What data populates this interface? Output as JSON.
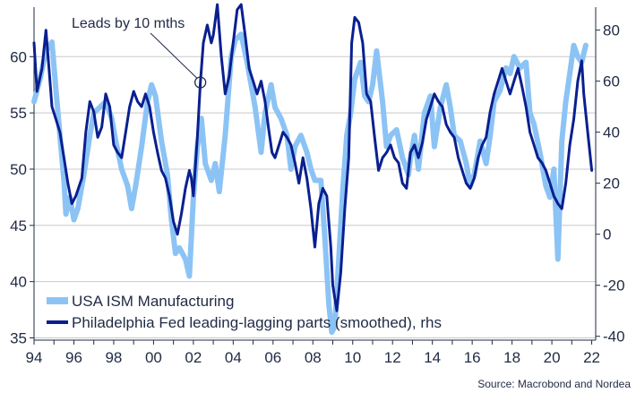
{
  "chart_data": {
    "type": "line",
    "x_unit": "year",
    "x_tick_labels": [
      "94",
      "96",
      "98",
      "00",
      "02",
      "04",
      "06",
      "08",
      "10",
      "12",
      "14",
      "16",
      "18",
      "20",
      "22"
    ],
    "x_tick_values": [
      1994,
      1996,
      1998,
      2000,
      2002,
      2004,
      2006,
      2008,
      2010,
      2012,
      2014,
      2016,
      2018,
      2020,
      2022
    ],
    "xlim": [
      1994,
      2022.2
    ],
    "left_axis": {
      "ticks": [
        35,
        40,
        45,
        50,
        55,
        60
      ],
      "ylim": [
        34.8,
        64.4
      ]
    },
    "right_axis": {
      "ticks": [
        -40,
        -20,
        0,
        20,
        40,
        60,
        80
      ],
      "ylim": [
        -41.5,
        89
      ]
    },
    "grid": "horizontal",
    "legend_position": "bottom-left",
    "annotation": {
      "text": "Leads by 10 mths",
      "x": 2002.35,
      "y_rhs": 59.5
    },
    "source": "Source: Macrobond and Nordea",
    "series": [
      {
        "name": "USA ISM Manufacturing",
        "axis": "left",
        "color": "#8cc3f5",
        "points": [
          [
            1994.0,
            56
          ],
          [
            1994.3,
            58
          ],
          [
            1994.6,
            60.5
          ],
          [
            1994.9,
            61.3
          ],
          [
            1995.1,
            57
          ],
          [
            1995.3,
            53
          ],
          [
            1995.5,
            49
          ],
          [
            1995.6,
            46
          ],
          [
            1995.8,
            47.5
          ],
          [
            1996.0,
            45.5
          ],
          [
            1996.2,
            46.5
          ],
          [
            1996.5,
            49.5
          ],
          [
            1996.8,
            53
          ],
          [
            1997.0,
            55
          ],
          [
            1997.3,
            55.5
          ],
          [
            1997.6,
            56
          ],
          [
            1997.9,
            54.5
          ],
          [
            1998.1,
            52.5
          ],
          [
            1998.4,
            50
          ],
          [
            1998.7,
            48.5
          ],
          [
            1998.9,
            46.5
          ],
          [
            1999.1,
            48.5
          ],
          [
            1999.4,
            52
          ],
          [
            1999.7,
            56
          ],
          [
            1999.9,
            57.5
          ],
          [
            2000.1,
            56.5
          ],
          [
            2000.4,
            52.5
          ],
          [
            2000.7,
            49.5
          ],
          [
            2000.9,
            45.5
          ],
          [
            2001.1,
            42.5
          ],
          [
            2001.3,
            43
          ],
          [
            2001.6,
            42
          ],
          [
            2001.8,
            40.5
          ],
          [
            2002.0,
            47.5
          ],
          [
            2002.2,
            52
          ],
          [
            2002.4,
            54.5
          ],
          [
            2002.6,
            50.5
          ],
          [
            2002.9,
            49
          ],
          [
            2003.1,
            50.5
          ],
          [
            2003.3,
            48
          ],
          [
            2003.6,
            53
          ],
          [
            2003.9,
            60
          ],
          [
            2004.1,
            61.5
          ],
          [
            2004.4,
            62
          ],
          [
            2004.7,
            59.5
          ],
          [
            2004.9,
            57.5
          ],
          [
            2005.1,
            55.5
          ],
          [
            2005.4,
            51.5
          ],
          [
            2005.6,
            55
          ],
          [
            2005.9,
            57.5
          ],
          [
            2006.1,
            55.5
          ],
          [
            2006.4,
            54.5
          ],
          [
            2006.7,
            53
          ],
          [
            2006.9,
            50
          ],
          [
            2007.1,
            52
          ],
          [
            2007.4,
            53
          ],
          [
            2007.7,
            51.5
          ],
          [
            2007.9,
            50
          ],
          [
            2008.1,
            49
          ],
          [
            2008.4,
            49
          ],
          [
            2008.6,
            44
          ],
          [
            2008.8,
            38
          ],
          [
            2008.95,
            35.5
          ],
          [
            2009.1,
            36
          ],
          [
            2009.3,
            42
          ],
          [
            2009.5,
            48
          ],
          [
            2009.7,
            53
          ],
          [
            2009.9,
            55
          ],
          [
            2010.1,
            58
          ],
          [
            2010.4,
            59.5
          ],
          [
            2010.6,
            56.5
          ],
          [
            2010.8,
            56
          ],
          [
            2011.0,
            57.5
          ],
          [
            2011.2,
            60.5
          ],
          [
            2011.5,
            56
          ],
          [
            2011.7,
            52
          ],
          [
            2011.9,
            53
          ],
          [
            2012.2,
            53.5
          ],
          [
            2012.5,
            51
          ],
          [
            2012.8,
            49.5
          ],
          [
            2012.9,
            51
          ],
          [
            2013.1,
            53
          ],
          [
            2013.3,
            50
          ],
          [
            2013.6,
            55
          ],
          [
            2013.9,
            56.5
          ],
          [
            2014.1,
            52
          ],
          [
            2014.4,
            55.5
          ],
          [
            2014.7,
            57.5
          ],
          [
            2014.9,
            55.5
          ],
          [
            2015.1,
            53
          ],
          [
            2015.4,
            52.5
          ],
          [
            2015.7,
            50.5
          ],
          [
            2015.9,
            48.5
          ],
          [
            2016.1,
            49.5
          ],
          [
            2016.4,
            52.5
          ],
          [
            2016.7,
            50.5
          ],
          [
            2016.9,
            53
          ],
          [
            2017.1,
            56
          ],
          [
            2017.4,
            57
          ],
          [
            2017.7,
            59
          ],
          [
            2017.9,
            58.5
          ],
          [
            2018.1,
            60
          ],
          [
            2018.4,
            59
          ],
          [
            2018.7,
            59.5
          ],
          [
            2018.9,
            55
          ],
          [
            2019.1,
            54
          ],
          [
            2019.4,
            51.5
          ],
          [
            2019.7,
            48.5
          ],
          [
            2019.9,
            47.5
          ],
          [
            2020.1,
            50
          ],
          [
            2020.3,
            42
          ],
          [
            2020.5,
            52.5
          ],
          [
            2020.7,
            56
          ],
          [
            2020.9,
            58.5
          ],
          [
            2021.1,
            61
          ],
          [
            2021.3,
            60
          ],
          [
            2021.5,
            59.5
          ],
          [
            2021.7,
            61
          ]
        ]
      },
      {
        "name": "Philadelphia Fed leading-lagging parts (smoothed), rhs",
        "axis": "right",
        "color": "#0a1f8f",
        "points": [
          [
            1994.0,
            75
          ],
          [
            1994.15,
            56
          ],
          [
            1994.4,
            65
          ],
          [
            1994.6,
            80
          ],
          [
            1994.75,
            65
          ],
          [
            1994.9,
            50
          ],
          [
            1995.1,
            45
          ],
          [
            1995.3,
            40
          ],
          [
            1995.5,
            30
          ],
          [
            1995.7,
            20
          ],
          [
            1995.9,
            12
          ],
          [
            1996.1,
            15
          ],
          [
            1996.4,
            22
          ],
          [
            1996.6,
            40
          ],
          [
            1996.8,
            52
          ],
          [
            1997.0,
            48
          ],
          [
            1997.2,
            38
          ],
          [
            1997.4,
            42
          ],
          [
            1997.6,
            55
          ],
          [
            1997.8,
            50
          ],
          [
            1998.0,
            35
          ],
          [
            1998.2,
            32
          ],
          [
            1998.4,
            30
          ],
          [
            1998.6,
            40
          ],
          [
            1998.8,
            50
          ],
          [
            1999.0,
            56
          ],
          [
            1999.2,
            52
          ],
          [
            1999.4,
            50
          ],
          [
            1999.6,
            55
          ],
          [
            1999.8,
            50
          ],
          [
            2000.0,
            40
          ],
          [
            2000.2,
            32
          ],
          [
            2000.4,
            25
          ],
          [
            2000.6,
            22
          ],
          [
            2000.8,
            15
          ],
          [
            2001.0,
            5
          ],
          [
            2001.2,
            0
          ],
          [
            2001.4,
            8
          ],
          [
            2001.6,
            18
          ],
          [
            2001.8,
            25
          ],
          [
            2001.9,
            22
          ],
          [
            2002.0,
            15
          ],
          [
            2002.2,
            38
          ],
          [
            2002.35,
            59.5
          ],
          [
            2002.5,
            75
          ],
          [
            2002.7,
            82
          ],
          [
            2002.9,
            75
          ],
          [
            2003.0,
            78
          ],
          [
            2003.2,
            90
          ],
          [
            2003.4,
            70
          ],
          [
            2003.6,
            55
          ],
          [
            2003.8,
            62
          ],
          [
            2004.0,
            75
          ],
          [
            2004.2,
            88
          ],
          [
            2004.4,
            90
          ],
          [
            2004.6,
            78
          ],
          [
            2004.8,
            65
          ],
          [
            2005.0,
            60
          ],
          [
            2005.2,
            55
          ],
          [
            2005.4,
            60
          ],
          [
            2005.6,
            52
          ],
          [
            2005.8,
            40
          ],
          [
            2005.95,
            32
          ],
          [
            2006.1,
            30
          ],
          [
            2006.3,
            35
          ],
          [
            2006.5,
            40
          ],
          [
            2006.7,
            38
          ],
          [
            2006.9,
            35
          ],
          [
            2007.1,
            28
          ],
          [
            2007.3,
            20
          ],
          [
            2007.5,
            30
          ],
          [
            2007.7,
            22
          ],
          [
            2007.9,
            10
          ],
          [
            2008.1,
            -5
          ],
          [
            2008.3,
            12
          ],
          [
            2008.5,
            18
          ],
          [
            2008.7,
            15
          ],
          [
            2008.9,
            -5
          ],
          [
            2009.0,
            -20
          ],
          [
            2009.2,
            -30
          ],
          [
            2009.4,
            -15
          ],
          [
            2009.6,
            10
          ],
          [
            2009.8,
            30
          ],
          [
            2009.95,
            75
          ],
          [
            2010.1,
            85
          ],
          [
            2010.3,
            83
          ],
          [
            2010.5,
            75
          ],
          [
            2010.7,
            55
          ],
          [
            2010.9,
            52
          ],
          [
            2011.1,
            38
          ],
          [
            2011.3,
            25
          ],
          [
            2011.5,
            30
          ],
          [
            2011.7,
            32
          ],
          [
            2011.9,
            35
          ],
          [
            2012.1,
            30
          ],
          [
            2012.3,
            28
          ],
          [
            2012.5,
            20
          ],
          [
            2012.7,
            18
          ],
          [
            2012.9,
            32
          ],
          [
            2013.1,
            35
          ],
          [
            2013.3,
            30
          ],
          [
            2013.5,
            36
          ],
          [
            2013.7,
            45
          ],
          [
            2013.9,
            50
          ],
          [
            2014.1,
            55
          ],
          [
            2014.3,
            52
          ],
          [
            2014.5,
            50
          ],
          [
            2014.7,
            43
          ],
          [
            2014.9,
            40
          ],
          [
            2015.1,
            38
          ],
          [
            2015.3,
            30
          ],
          [
            2015.5,
            25
          ],
          [
            2015.7,
            20
          ],
          [
            2015.9,
            18
          ],
          [
            2016.1,
            22
          ],
          [
            2016.3,
            30
          ],
          [
            2016.5,
            35
          ],
          [
            2016.7,
            38
          ],
          [
            2016.9,
            48
          ],
          [
            2017.1,
            55
          ],
          [
            2017.3,
            60
          ],
          [
            2017.5,
            65
          ],
          [
            2017.7,
            60
          ],
          [
            2017.9,
            55
          ],
          [
            2018.1,
            60
          ],
          [
            2018.3,
            65
          ],
          [
            2018.5,
            58
          ],
          [
            2018.7,
            50
          ],
          [
            2018.9,
            40
          ],
          [
            2019.1,
            35
          ],
          [
            2019.3,
            30
          ],
          [
            2019.5,
            28
          ],
          [
            2019.7,
            25
          ],
          [
            2019.9,
            20
          ],
          [
            2020.1,
            15
          ],
          [
            2020.3,
            12
          ],
          [
            2020.5,
            10
          ],
          [
            2020.7,
            20
          ],
          [
            2020.9,
            35
          ],
          [
            2021.1,
            45
          ],
          [
            2021.3,
            60
          ],
          [
            2021.5,
            68
          ],
          [
            2021.6,
            55
          ],
          [
            2021.8,
            40
          ],
          [
            2022.0,
            25
          ]
        ]
      }
    ]
  }
}
